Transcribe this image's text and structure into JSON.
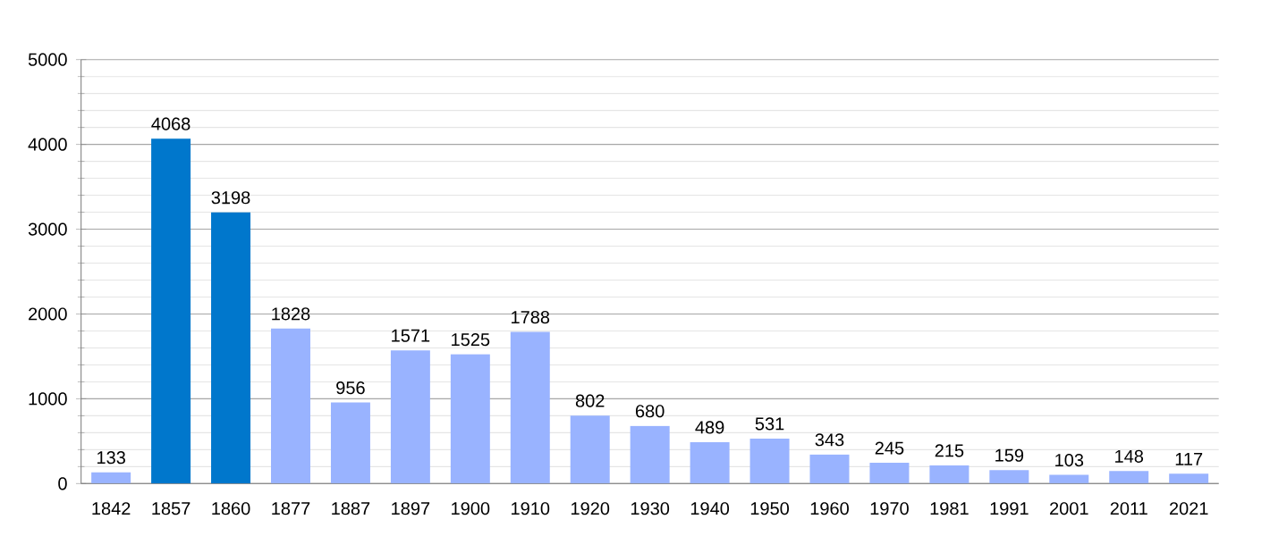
{
  "chart_data": {
    "type": "bar",
    "categories": [
      "1842",
      "1857",
      "1860",
      "1877",
      "1887",
      "1897",
      "1900",
      "1910",
      "1920",
      "1930",
      "1940",
      "1950",
      "1960",
      "1970",
      "1981",
      "1991",
      "2001",
      "2011",
      "2021"
    ],
    "values": [
      133,
      4068,
      3198,
      1828,
      956,
      1571,
      1525,
      1788,
      802,
      680,
      489,
      531,
      343,
      245,
      215,
      159,
      103,
      148,
      117
    ],
    "colors": [
      "#99b3ff",
      "#0077cc",
      "#0077cc",
      "#99b3ff",
      "#99b3ff",
      "#99b3ff",
      "#99b3ff",
      "#99b3ff",
      "#99b3ff",
      "#99b3ff",
      "#99b3ff",
      "#99b3ff",
      "#99b3ff",
      "#99b3ff",
      "#99b3ff",
      "#99b3ff",
      "#99b3ff",
      "#99b3ff",
      "#99b3ff"
    ],
    "ylim": [
      0,
      5000
    ],
    "yticks": [
      0,
      {
        "value": 200,
        "label": null
      },
      {
        "value": 400,
        "label": null
      },
      {
        "value": 600,
        "label": null
      },
      {
        "value": 800,
        "label": null
      },
      1000,
      {
        "value": 1200,
        "label": null
      },
      {
        "value": 1400,
        "label": null
      },
      {
        "value": 1600,
        "label": null
      },
      {
        "value": 1800,
        "label": null
      },
      2000,
      {
        "value": 2200,
        "label": null
      },
      {
        "value": 2400,
        "label": null
      },
      {
        "value": 2600,
        "label": null
      },
      {
        "value": 2800,
        "label": null
      },
      3000,
      {
        "value": 3200,
        "label": null
      },
      {
        "value": 3400,
        "label": null
      },
      {
        "value": 3600,
        "label": null
      },
      {
        "value": 3800,
        "label": null
      },
      4000,
      {
        "value": 4200,
        "label": null
      },
      {
        "value": 4400,
        "label": null
      },
      {
        "value": 4600,
        "label": null
      },
      {
        "value": 4800,
        "label": null
      },
      5000
    ],
    "grid": "y",
    "data_labels": true
  }
}
